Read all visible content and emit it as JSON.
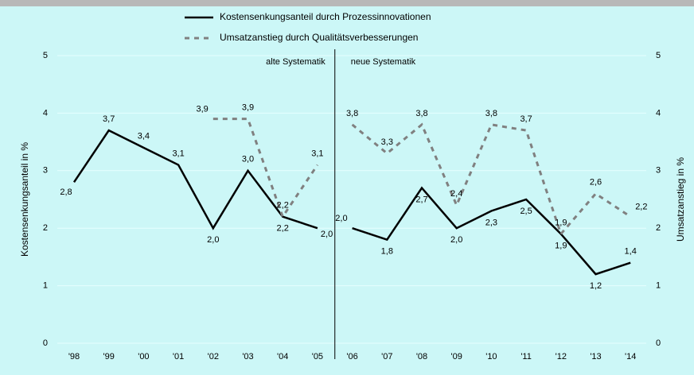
{
  "chart_data": {
    "type": "line",
    "sections": [
      {
        "label": "alte Systematik",
        "categories": [
          "'98",
          "'99",
          "'00",
          "'01",
          "'02",
          "'03",
          "'04",
          "'05"
        ]
      },
      {
        "label": "neue Systematik",
        "categories": [
          "'06",
          "'07",
          "'08",
          "'09",
          "'10",
          "'11",
          "'12",
          "'13",
          "'14"
        ]
      }
    ],
    "series": [
      {
        "name": "Kostensenkungsanteil durch Prozessinnovationen",
        "color": "#000000",
        "dashed": false,
        "axis": "y",
        "values": [
          2.8,
          3.7,
          3.4,
          3.1,
          2.0,
          3.0,
          2.2,
          2.0,
          2.0,
          1.8,
          2.7,
          2.0,
          2.3,
          2.5,
          1.9,
          1.2,
          1.4
        ],
        "value_labels": [
          "2,8",
          "3,7",
          "3,4",
          "3,1",
          "2,0",
          "3,0",
          "2,2",
          "2,0",
          "2,0",
          "1,8",
          "2,7",
          "2,0",
          "2,3",
          "2,5",
          "1,9",
          "1,2",
          "1,4"
        ]
      },
      {
        "name": "Umsatzanstieg durch Qualitätsverbesserungen",
        "color": "#808080",
        "dashed": true,
        "axis": "y2",
        "values": [
          null,
          null,
          null,
          null,
          3.9,
          3.9,
          2.2,
          3.1,
          3.8,
          3.3,
          3.8,
          2.4,
          3.8,
          3.7,
          1.9,
          2.6,
          2.2
        ],
        "value_labels": [
          null,
          null,
          null,
          null,
          "3,9",
          "3,9",
          "2,2",
          "3,1",
          "3,8",
          "3,3",
          "3,8",
          "2,4",
          "3,8",
          "3,7",
          "1,9",
          "2,6",
          "2,2"
        ]
      }
    ],
    "ylabel": "Kostensenkungsanteil in %",
    "y2label": "Umsatzanstieg in %",
    "ylim": [
      0,
      5
    ],
    "yticks": [
      0,
      1,
      2,
      3,
      4,
      5
    ],
    "y2lim": [
      0,
      5
    ],
    "y2ticks": [
      0,
      1,
      2,
      3,
      4,
      5
    ],
    "grid": true
  }
}
